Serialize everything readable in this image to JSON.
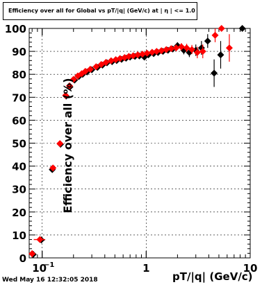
{
  "chart_data": {
    "type": "scatter",
    "title": "Efficiency over all for Global vs pT/|q| (GeV/c) at | η | <= 1.0",
    "xlabel": "pT/|q| (GeV/c)",
    "ylabel": "Efficiency over all (%)",
    "xscale": "log",
    "xlim": [
      0.075,
      10
    ],
    "ylim": [
      0,
      100
    ],
    "grid": true,
    "x_tick_labels": [
      {
        "value": 0.1,
        "label": "10",
        "exponent": "−1"
      },
      {
        "value": 1,
        "label": "1"
      },
      {
        "value": 10,
        "label": "10"
      }
    ],
    "y_ticks": [
      0,
      10,
      20,
      30,
      40,
      50,
      60,
      70,
      80,
      90,
      100
    ],
    "series": [
      {
        "color": "#000000",
        "marker": "diamond",
        "points": [
          {
            "x": 0.082,
            "y": 1.5,
            "xerr": 0.004,
            "yerr": 1.5
          },
          {
            "x": 0.098,
            "y": 7.8,
            "xerr": 0.008,
            "yerr": 0.5
          },
          {
            "x": 0.125,
            "y": 38.5,
            "xerr": 0.006,
            "yerr": 0.8
          },
          {
            "x": 0.15,
            "y": 49.5,
            "xerr": 0.004,
            "yerr": 0.8
          },
          {
            "x": 0.17,
            "y": 70.5,
            "xerr": 0.004,
            "yerr": 0.8
          },
          {
            "x": 0.185,
            "y": 74.5,
            "xerr": 0.004,
            "yerr": 0.8
          },
          {
            "x": 0.205,
            "y": 77.5,
            "yerr": 0.6
          },
          {
            "x": 0.225,
            "y": 79.0,
            "yerr": 0.6
          },
          {
            "x": 0.245,
            "y": 80.0,
            "yerr": 0.6
          },
          {
            "x": 0.27,
            "y": 81.0,
            "yerr": 0.5
          },
          {
            "x": 0.3,
            "y": 82.0,
            "yerr": 0.5
          },
          {
            "x": 0.34,
            "y": 83.0,
            "yerr": 0.5
          },
          {
            "x": 0.38,
            "y": 84.0,
            "yerr": 0.5
          },
          {
            "x": 0.42,
            "y": 85.0,
            "yerr": 0.5
          },
          {
            "x": 0.47,
            "y": 85.5,
            "yerr": 0.5
          },
          {
            "x": 0.52,
            "y": 86.0,
            "yerr": 0.5
          },
          {
            "x": 0.58,
            "y": 86.5,
            "yerr": 0.5
          },
          {
            "x": 0.64,
            "y": 87.0,
            "yerr": 0.6
          },
          {
            "x": 0.7,
            "y": 87.5,
            "yerr": 0.6
          },
          {
            "x": 0.78,
            "y": 87.8,
            "yerr": 0.6
          },
          {
            "x": 0.86,
            "y": 88.0,
            "yerr": 0.7
          },
          {
            "x": 0.96,
            "y": 87.5,
            "yerr": 0.8
          },
          {
            "x": 1.05,
            "y": 88.5,
            "yerr": 0.8
          },
          {
            "x": 1.18,
            "y": 89.0,
            "yerr": 0.9
          },
          {
            "x": 1.3,
            "y": 89.5,
            "yerr": 1.0
          },
          {
            "x": 1.45,
            "y": 90.0,
            "yerr": 1.0
          },
          {
            "x": 1.62,
            "y": 90.5,
            "yerr": 1.2
          },
          {
            "x": 1.8,
            "y": 91.0,
            "yerr": 1.3
          },
          {
            "x": 2.0,
            "y": 92.5,
            "yerr": 1.5
          },
          {
            "x": 2.3,
            "y": 90.5,
            "yerr": 1.8
          },
          {
            "x": 2.6,
            "y": 89.5,
            "yerr": 2.0
          },
          {
            "x": 3.0,
            "y": 90.5,
            "yerr": 2.5
          },
          {
            "x": 3.4,
            "y": 91.5,
            "yerr": 3.0
          },
          {
            "x": 3.9,
            "y": 94.5,
            "yerr": 3.0
          },
          {
            "x": 4.5,
            "y": 80.5,
            "yerr": 6.0
          },
          {
            "x": 5.2,
            "y": 88.5,
            "yerr": 6.0
          },
          {
            "x": 8.4,
            "y": 100.0,
            "yerr": 0
          }
        ]
      },
      {
        "color": "#ff0000",
        "marker": "diamond",
        "points": [
          {
            "x": 0.08,
            "y": 1.8,
            "xerr": 0.004,
            "yerr": 1.5
          },
          {
            "x": 0.095,
            "y": 8.0,
            "xerr": 0.012,
            "yerr": 0.5
          },
          {
            "x": 0.127,
            "y": 39.2,
            "xerr": 0.008,
            "yerr": 0.8
          },
          {
            "x": 0.148,
            "y": 49.8,
            "xerr": 0.004,
            "yerr": 0.8
          },
          {
            "x": 0.168,
            "y": 70.8,
            "xerr": 0.004,
            "yerr": 0.8
          },
          {
            "x": 0.183,
            "y": 75.0,
            "xerr": 0.004,
            "yerr": 0.8
          },
          {
            "x": 0.2,
            "y": 77.8,
            "yerr": 0.5
          },
          {
            "x": 0.22,
            "y": 79.3,
            "yerr": 0.5
          },
          {
            "x": 0.24,
            "y": 80.3,
            "yerr": 0.5
          },
          {
            "x": 0.26,
            "y": 81.3,
            "yerr": 0.5
          },
          {
            "x": 0.29,
            "y": 82.2,
            "yerr": 0.5
          },
          {
            "x": 0.33,
            "y": 83.3,
            "yerr": 0.5
          },
          {
            "x": 0.37,
            "y": 84.3,
            "yerr": 0.5
          },
          {
            "x": 0.41,
            "y": 85.2,
            "yerr": 0.5
          },
          {
            "x": 0.46,
            "y": 85.9,
            "yerr": 0.5
          },
          {
            "x": 0.51,
            "y": 86.4,
            "yerr": 0.5
          },
          {
            "x": 0.56,
            "y": 86.9,
            "yerr": 0.5
          },
          {
            "x": 0.62,
            "y": 87.3,
            "yerr": 0.5
          },
          {
            "x": 0.68,
            "y": 87.8,
            "yerr": 0.5
          },
          {
            "x": 0.75,
            "y": 88.1,
            "yerr": 0.6
          },
          {
            "x": 0.83,
            "y": 88.5,
            "yerr": 0.6
          },
          {
            "x": 0.92,
            "y": 88.8,
            "yerr": 0.7
          },
          {
            "x": 1.02,
            "y": 89.2,
            "yerr": 0.7
          },
          {
            "x": 1.14,
            "y": 89.6,
            "yerr": 0.8
          },
          {
            "x": 1.26,
            "y": 90.0,
            "yerr": 0.9
          },
          {
            "x": 1.4,
            "y": 90.3,
            "yerr": 1.0
          },
          {
            "x": 1.56,
            "y": 90.8,
            "yerr": 1.1
          },
          {
            "x": 1.74,
            "y": 91.2,
            "yerr": 1.2
          },
          {
            "x": 1.94,
            "y": 91.5,
            "yerr": 1.4
          },
          {
            "x": 2.18,
            "y": 92.0,
            "yerr": 1.6
          },
          {
            "x": 2.45,
            "y": 91.5,
            "yerr": 1.8
          },
          {
            "x": 2.75,
            "y": 90.8,
            "yerr": 2.0
          },
          {
            "x": 3.1,
            "y": 89.5,
            "yerr": 2.5
          },
          {
            "x": 3.5,
            "y": 90.0,
            "yerr": 3.0
          },
          {
            "x": 4.6,
            "y": 97.0,
            "yerr": 3.0
          },
          {
            "x": 5.3,
            "y": 100.0,
            "yerr": 0
          },
          {
            "x": 6.3,
            "y": 91.5,
            "yerr": 6.0
          }
        ]
      }
    ]
  },
  "footer": {
    "datestamp": "Wed May 16 12:32:05 2018"
  }
}
